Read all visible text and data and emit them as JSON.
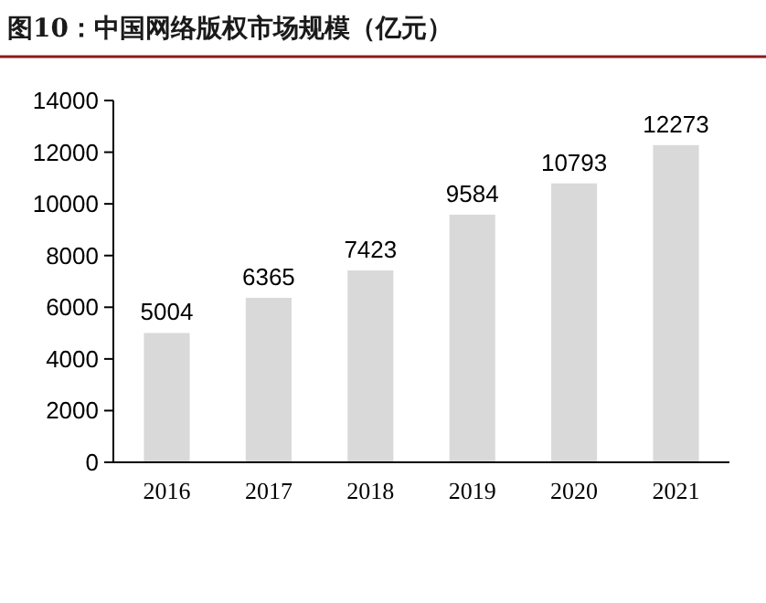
{
  "chart_data": {
    "type": "bar",
    "title": "图10：中国网络版权市场规模（亿元）",
    "categories": [
      "2016",
      "2017",
      "2018",
      "2019",
      "2020",
      "2021"
    ],
    "values": [
      5004,
      6365,
      7423,
      9584,
      10793,
      12273
    ],
    "color": "#d9d9d9",
    "ylim": [
      0,
      14000
    ],
    "yticks": [
      0,
      2000,
      4000,
      6000,
      8000,
      10000,
      12000,
      14000
    ],
    "data_labels": true
  }
}
